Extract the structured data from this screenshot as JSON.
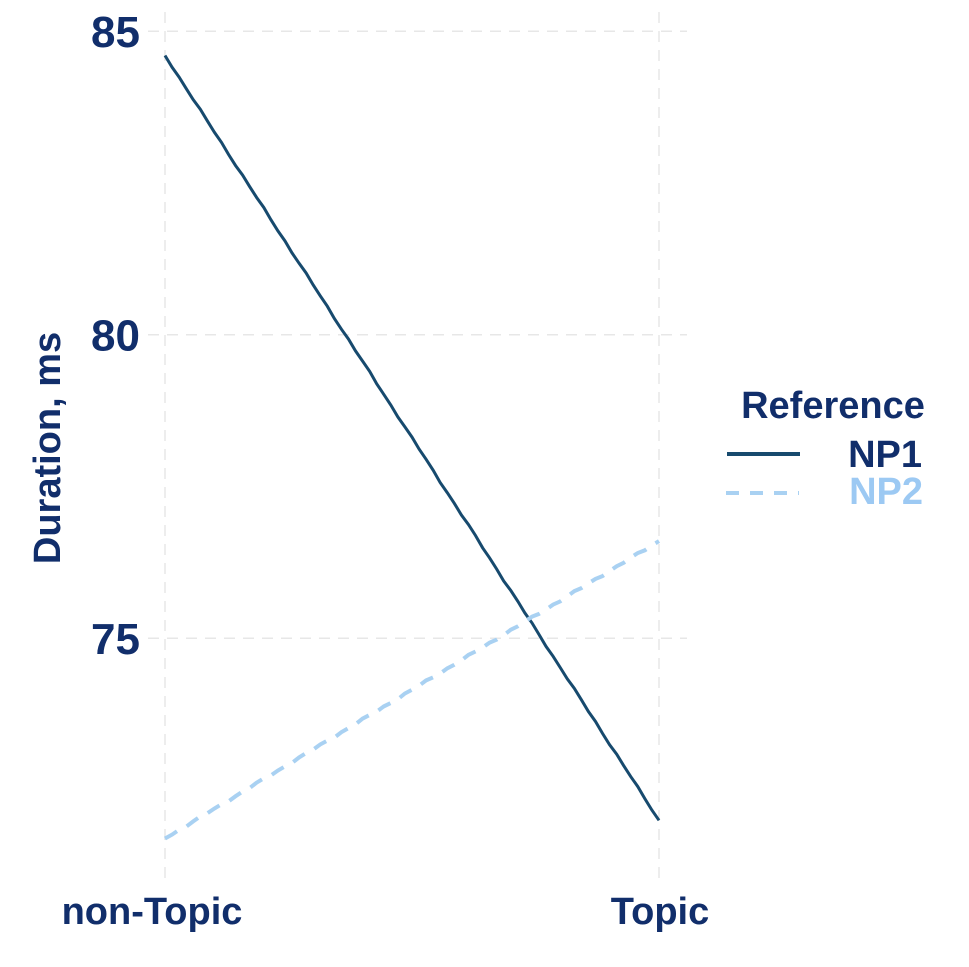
{
  "chart_data": {
    "type": "line",
    "title": "",
    "xlabel": "",
    "ylabel": "Duration, ms",
    "categories": [
      "non-Topic",
      "Topic"
    ],
    "series": [
      {
        "name": "NP1",
        "values": [
          84.6,
          72.0
        ],
        "color": "#174a6e",
        "label_color": "#112e6b",
        "style": "solid",
        "width": 3
      },
      {
        "name": "NP2",
        "values": [
          71.7,
          76.6
        ],
        "color": "#a9d1f2",
        "label_color": "#9cc9f3",
        "style": "dashed",
        "width": 4
      }
    ],
    "yticks": [
      85,
      80,
      75
    ],
    "ylim": [
      71.05,
      85.35
    ],
    "grid": "dashed",
    "legend": {
      "title": "Reference",
      "position": "right"
    }
  },
  "colors": {
    "text": "#112e6b",
    "grid": "#e7e7e7",
    "background": "#ffffff"
  }
}
